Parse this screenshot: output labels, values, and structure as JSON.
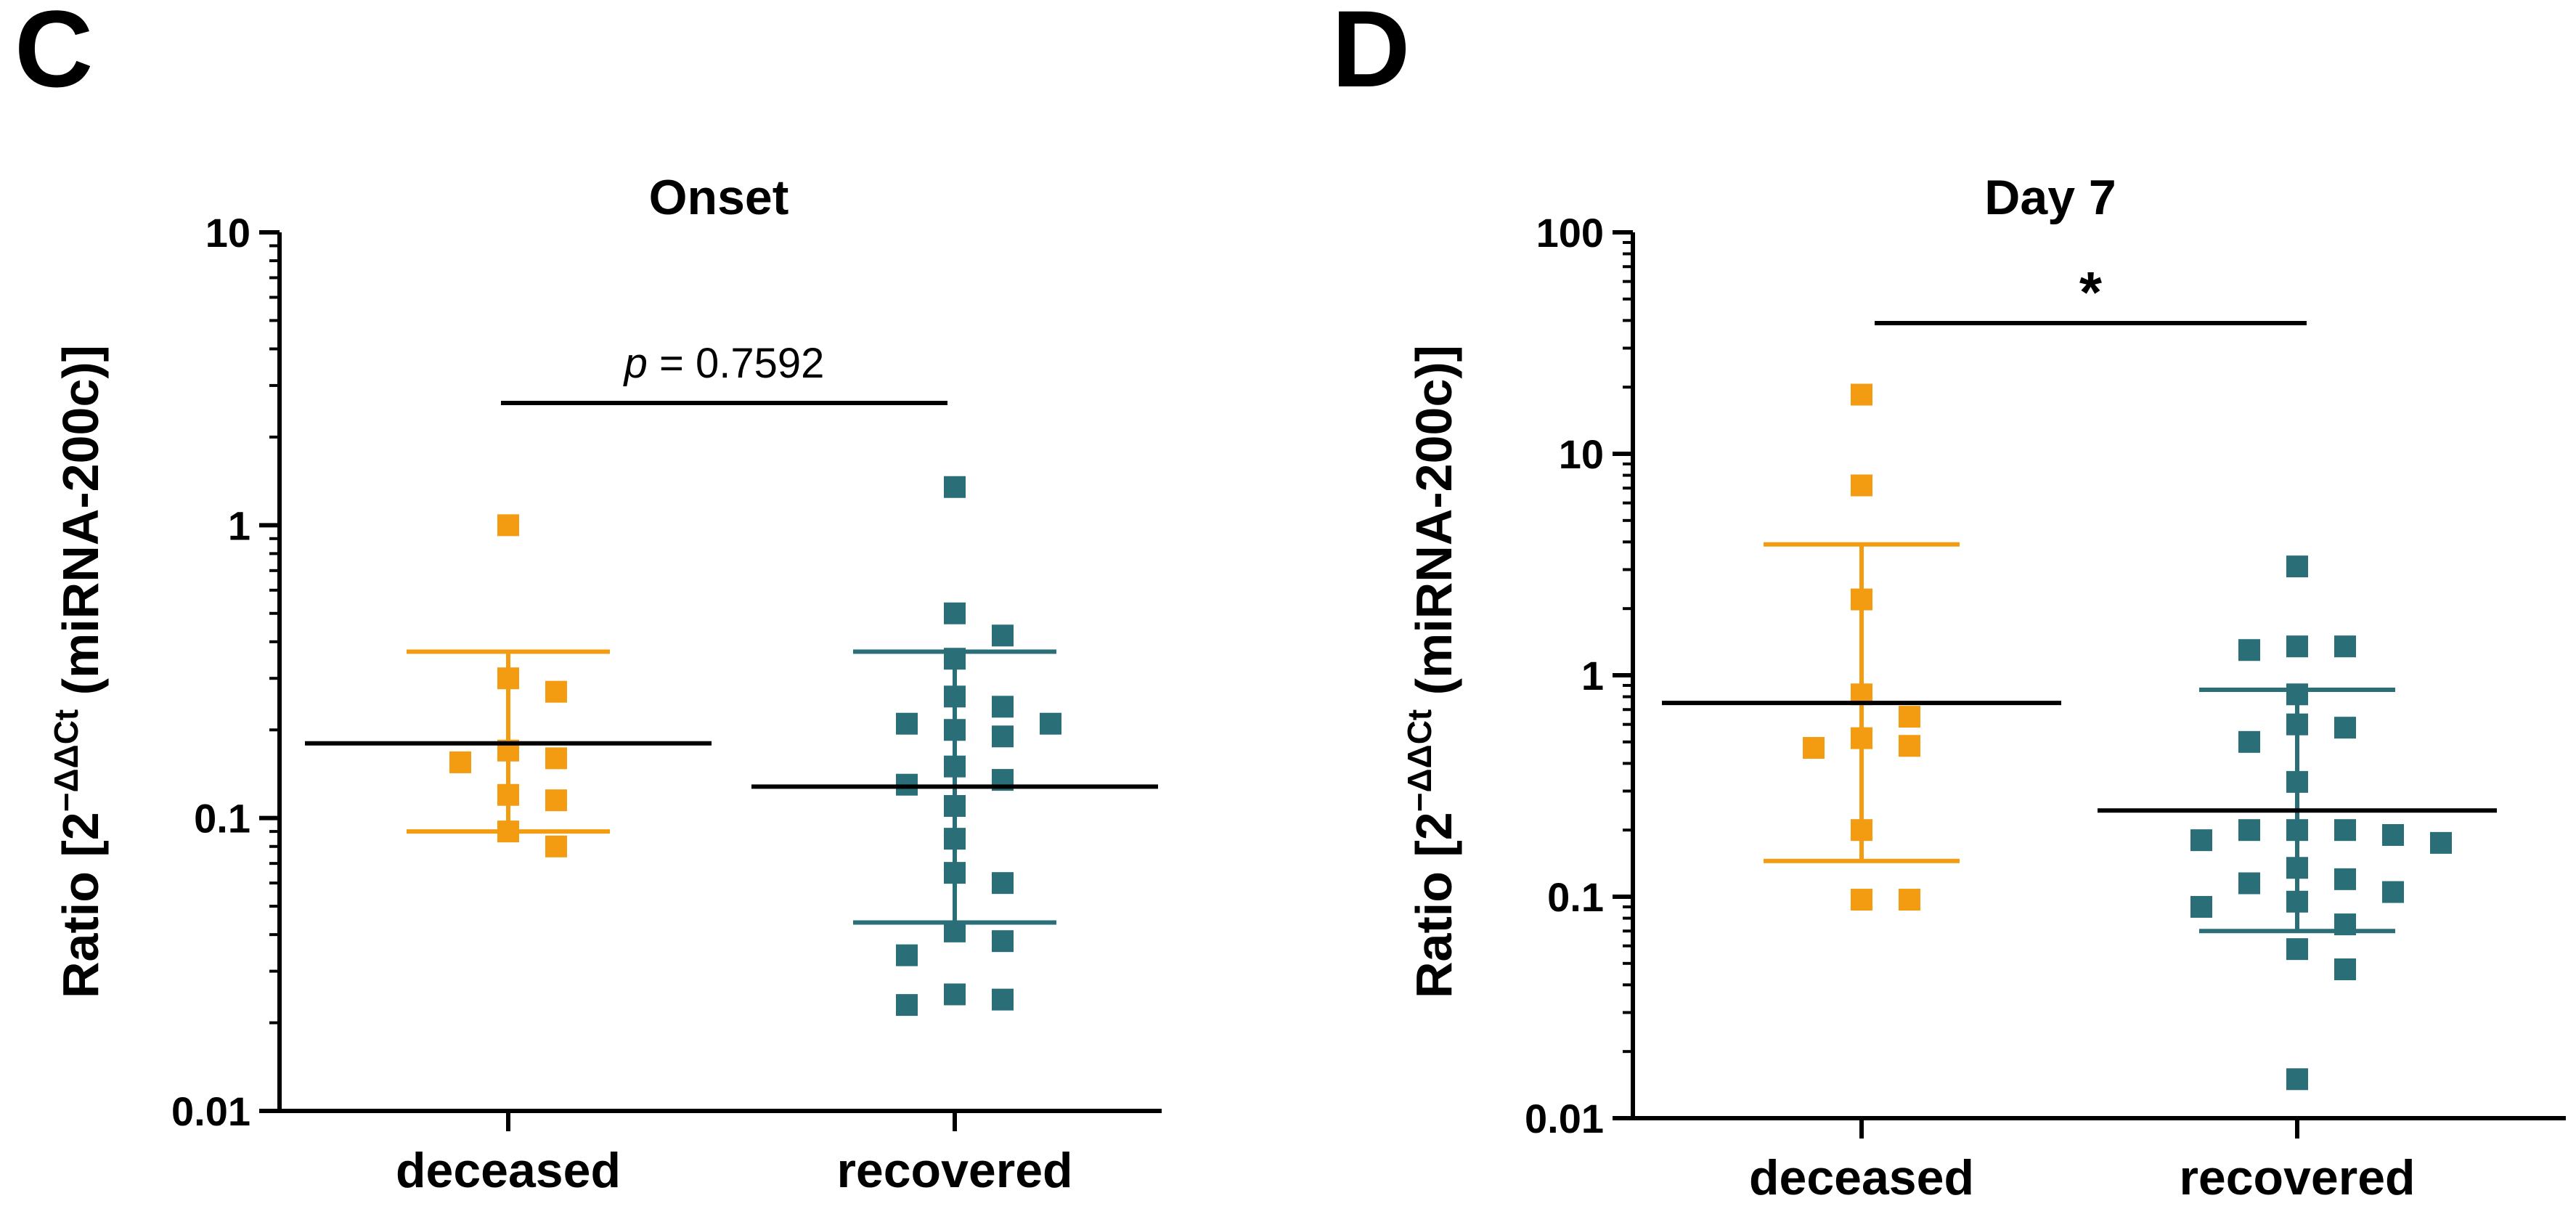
{
  "chart_data": [
    {
      "panel_label": "C",
      "type": "scatter",
      "title": "Onset",
      "ylabel_main": "Ratio [2",
      "ylabel_sup": "−ΔΔCt",
      "ylabel_tail": " (miRNA-200c)]",
      "yscale": "log",
      "ylim": [
        0.01,
        10
      ],
      "yticks": [
        {
          "value": 0.01,
          "label": "0.01"
        },
        {
          "value": 0.1,
          "label": "0.1"
        },
        {
          "value": 1,
          "label": "1"
        },
        {
          "value": 10,
          "label": "10"
        }
      ],
      "categories": [
        "deceased",
        "recovered"
      ],
      "annotation": {
        "italic": "p",
        "text": " = 0.7592"
      },
      "series": [
        {
          "name": "deceased",
          "color": "#F39C12",
          "mean": 0.18,
          "err_high": 0.37,
          "err_low": 0.09,
          "points": [
            1.0,
            0.3,
            0.27,
            0.17,
            0.16,
            0.155,
            0.12,
            0.115,
            0.09,
            0.08
          ]
        },
        {
          "name": "recovered",
          "color": "#2A6F78",
          "mean": 0.128,
          "err_high": 0.37,
          "err_low": 0.044,
          "points": [
            1.35,
            0.5,
            0.42,
            0.35,
            0.26,
            0.24,
            0.21,
            0.21,
            0.2,
            0.19,
            0.15,
            0.135,
            0.13,
            0.11,
            0.085,
            0.065,
            0.06,
            0.041,
            0.038,
            0.034,
            0.025,
            0.024,
            0.023
          ]
        }
      ]
    },
    {
      "panel_label": "D",
      "type": "scatter",
      "title": "Day 7",
      "ylabel_main": "Ratio [2",
      "ylabel_sup": "−ΔΔCt",
      "ylabel_tail": " (miRNA-200c)]",
      "yscale": "log",
      "ylim": [
        0.01,
        100
      ],
      "yticks": [
        {
          "value": 0.01,
          "label": "0.01"
        },
        {
          "value": 0.1,
          "label": "0.1"
        },
        {
          "value": 1,
          "label": "1"
        },
        {
          "value": 10,
          "label": "10"
        },
        {
          "value": 100,
          "label": "100"
        }
      ],
      "categories": [
        "deceased",
        "recovered"
      ],
      "annotation": {
        "italic": "",
        "text": "*"
      },
      "series": [
        {
          "name": "deceased",
          "color": "#F39C12",
          "mean": 0.75,
          "err_high": 3.9,
          "err_low": 0.145,
          "points": [
            18.5,
            7.2,
            2.2,
            0.82,
            0.65,
            0.52,
            0.48,
            0.47,
            0.2,
            0.097,
            0.097
          ]
        },
        {
          "name": "recovered",
          "color": "#2A6F78",
          "mean": 0.245,
          "err_high": 0.86,
          "err_low": 0.07,
          "points": [
            3.1,
            1.35,
            1.35,
            1.3,
            0.82,
            0.6,
            0.58,
            0.5,
            0.33,
            0.2,
            0.2,
            0.2,
            0.19,
            0.18,
            0.175,
            0.135,
            0.12,
            0.115,
            0.105,
            0.095,
            0.09,
            0.075,
            0.058,
            0.047,
            0.015
          ]
        }
      ]
    }
  ]
}
